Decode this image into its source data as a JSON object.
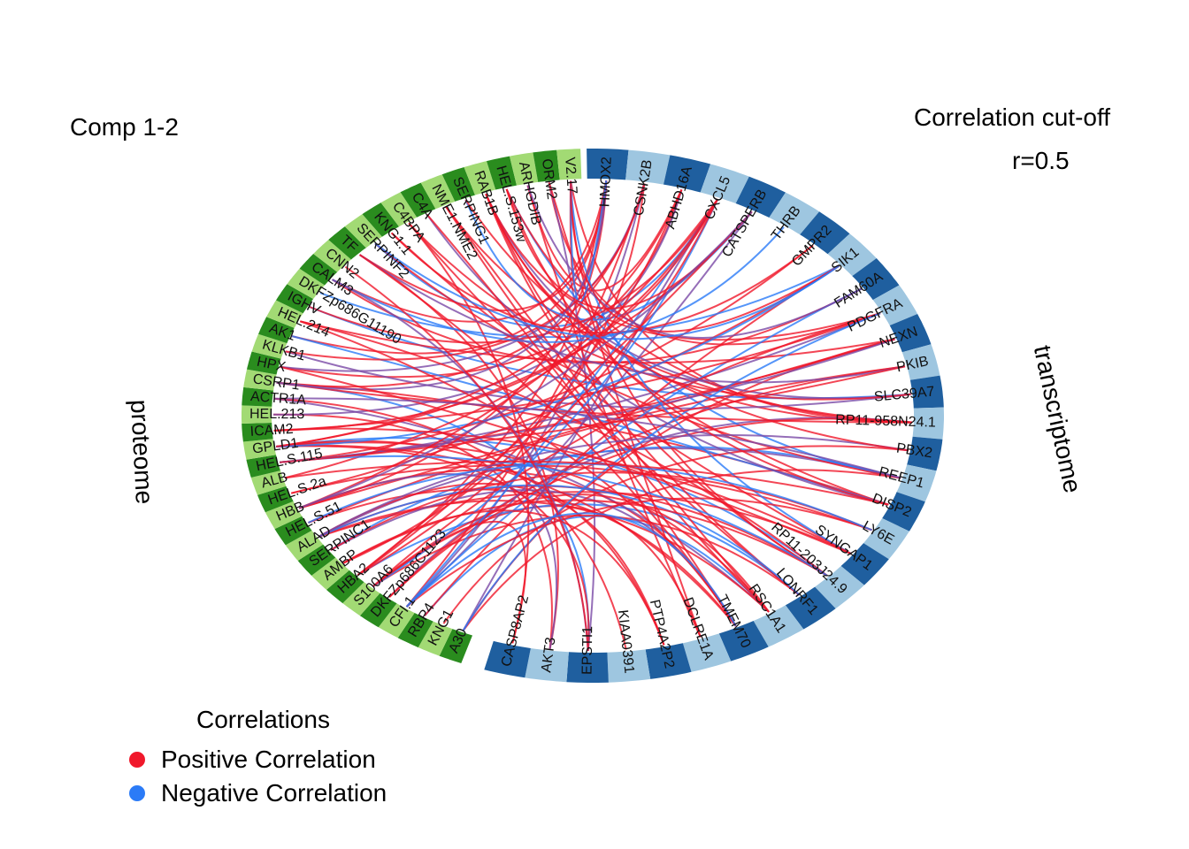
{
  "comp_label": "Comp 1-2",
  "cutoff": {
    "title": "Correlation cut-off",
    "value": "r=0.5"
  },
  "blocks": {
    "proteome": "proteome",
    "transcriptome": "transcriptome"
  },
  "legend": {
    "title": "Correlations",
    "items": [
      {
        "label": "Positive Correlation",
        "color": "#f0182b"
      },
      {
        "label": "Negative Correlation",
        "color": "#2b7bf7"
      }
    ]
  },
  "colors": {
    "proteome_dark": "#2a8c1e",
    "proteome_light": "#a2da74",
    "transcriptome_dark": "#1f5f9f",
    "transcriptome_light": "#9ec6e0",
    "positive": "#f0182b",
    "negative": "#2b7bf7",
    "mixed": "#7a4aa6"
  },
  "chart_data": {
    "type": "circos",
    "proteome_genes": [
      "KNG1",
      "RBP4",
      "CFI.1",
      "DKFZp686C1123",
      "S100A6",
      "HBA2",
      "AMBP",
      "SERPINC1",
      "ALAD",
      "HEL.S.51",
      "HBB",
      "HEL.S.2a",
      "ALB",
      "HEL.S.115",
      "GPLD1",
      "ICAM2",
      "HEL.213",
      "ACTR1A",
      "CSRP1",
      "HPX",
      "KLKB1",
      "AK1",
      "HEL.214",
      "IGHV",
      "DKFZp686G11190",
      "CALM3",
      "CNN2",
      "TF",
      "SERPINF2",
      "KNG1.1",
      "C4BPA",
      "C4A",
      "NME1.NME2",
      "SERPING1",
      "RAB1B",
      "HEL.S.153w",
      "ARHGDIB",
      "ORM2",
      "V2.17"
    ],
    "transcriptome_genes": [
      "HMOX2",
      "CSNK2B",
      "ABHD16A",
      "CXCL5",
      "CATSPERB",
      "THRB",
      "GMPR2",
      "SIK1",
      "FAM60A",
      "PDGFRA",
      "NEXN",
      "PKIB",
      "SLC39A7",
      "RP11-958N24.1",
      "PBX2",
      "REEP1",
      "DISP2",
      "LY6E",
      "SYNGAP1",
      "RP11-203J24.9",
      "LONRF1",
      "RSC1A1",
      "TMEM70",
      "DCLRE1A",
      "PTP4A2P2",
      "KIAA0391",
      "EPSTI1",
      "AKT3",
      "CASP8AP2"
    ],
    "extra_proteome_label": "A30",
    "cutoff": 0.5
  }
}
